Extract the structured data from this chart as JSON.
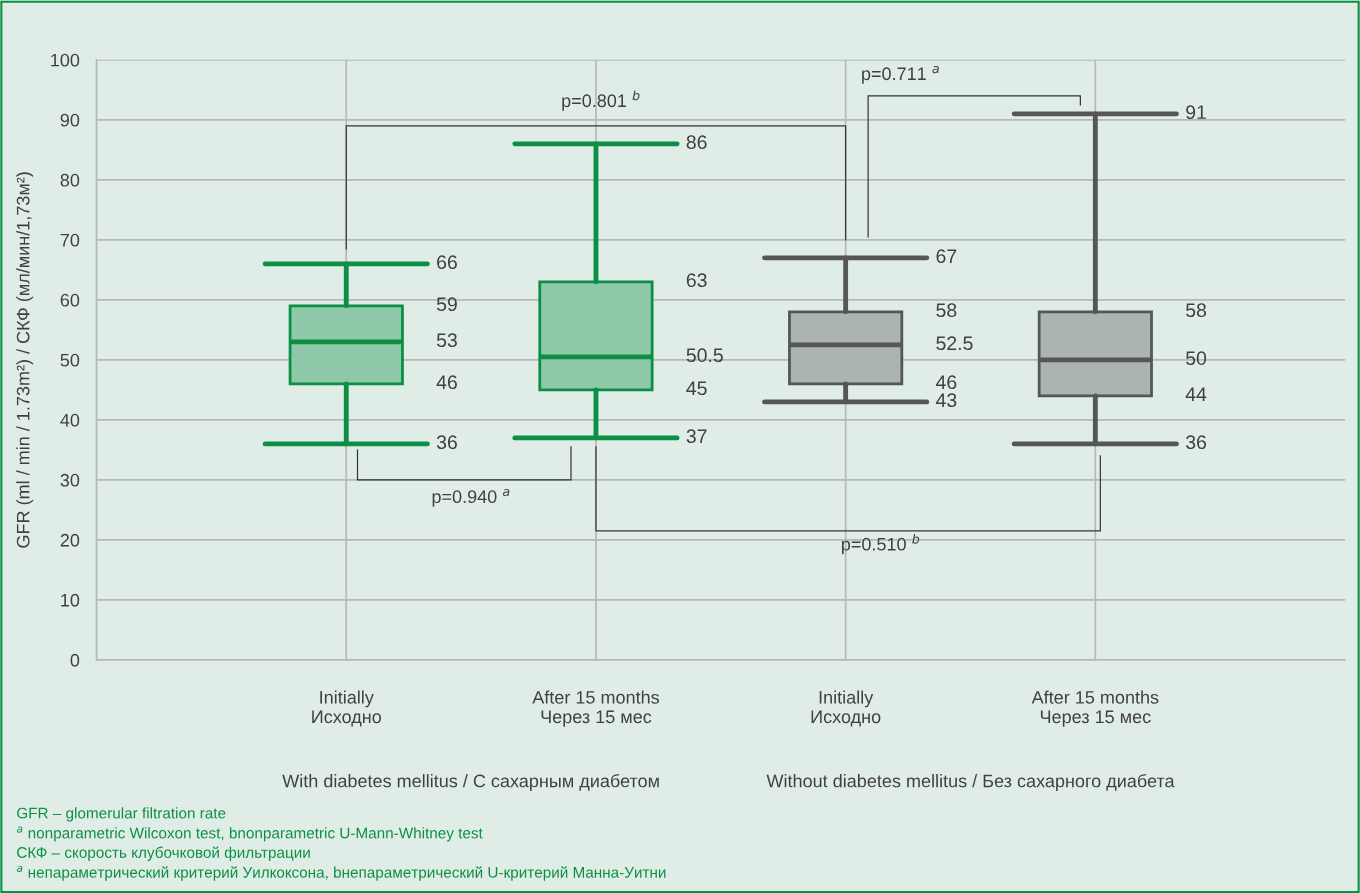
{
  "chart_data": {
    "type": "box",
    "ylabel": "GFR (ml / min / 1.73m²) / СКФ (мл/мин/1,73м²)",
    "categories": [
      "Initially\nИсходно",
      "After 15 months\nЧерез 15 мес",
      "Initially\nИсходно",
      "After 15 months\nЧерез 15 мес"
    ],
    "series": [
      {
        "color": "#0a8f45",
        "boxes": [
          {
            "low": 36,
            "q1": 46,
            "median": 53,
            "q3": 59,
            "high": 66
          },
          {
            "low": 37,
            "q1": 45,
            "median": 50.5,
            "q3": 63,
            "high": 86
          },
          null,
          null
        ]
      },
      {
        "color": "#555659",
        "boxes": [
          null,
          null,
          {
            "low": 43,
            "q1": 46,
            "median": 52.5,
            "q3": 58,
            "high": 67
          },
          {
            "low": 36,
            "q1": 44,
            "median": 50,
            "q3": 58,
            "high": 91
          }
        ]
      }
    ],
    "ylim": [
      0,
      100
    ],
    "yticks": [
      0,
      10,
      20,
      30,
      40,
      50,
      60,
      70,
      80,
      90,
      100
    ],
    "grid": true,
    "data_labels": true,
    "annotations": [
      "66",
      "59",
      "53",
      "46",
      "36",
      "86",
      "63",
      "50.5",
      "45",
      "37",
      "67",
      "58",
      "52.5",
      "46",
      "43",
      "91",
      "58",
      "50",
      "44",
      "36",
      "With diabetes mellitus / С сахарным диабетом",
      "Without diabetes mellitus / Без сахарного диабета",
      "p=0.801 $^{b}$",
      "p=0.711 $^{a}$",
      "p=0.940 $^{a}$",
      "p=0.510 $^{b}$",
      "GFR – glomerular filtration rate",
      "$^{a}$ nonparametric Wilcoxon test, bnonparametric U-Mann-Whitney test",
      "СКФ – скорость клубочковой фильтрации",
      "$^{a}$ непараметрический критерий Уилкоксона, bнепараметрический U-критерий Манна-Уитни"
    ]
  }
}
